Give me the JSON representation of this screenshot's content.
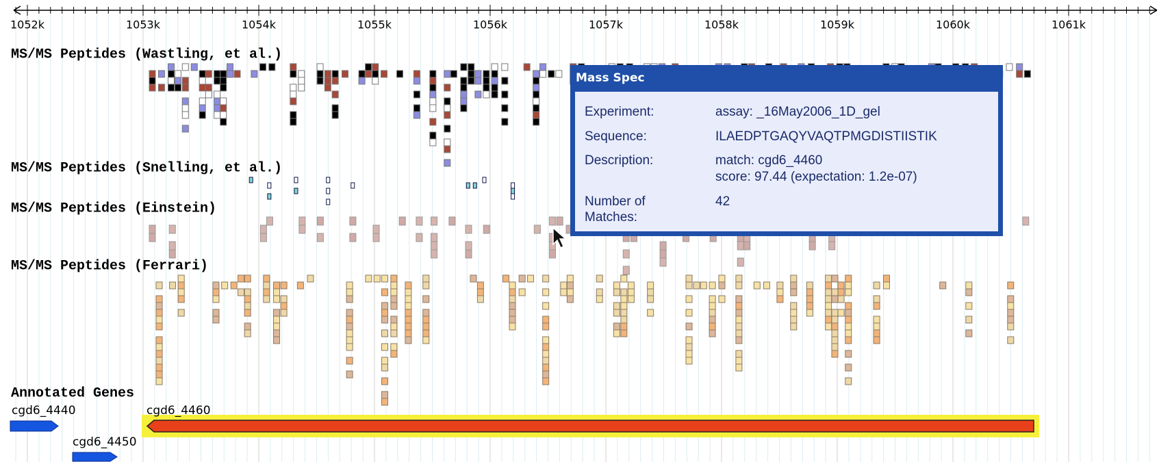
{
  "ruler": {
    "labels": [
      "1052k",
      "1053k",
      "1054k",
      "1055k",
      "1056k",
      "1057k",
      "1058k",
      "1059k",
      "1060k",
      "1061k"
    ]
  },
  "tracks": [
    {
      "title": "MS/MS Peptides (Wastling, et al.)"
    },
    {
      "title": "MS/MS Peptides (Snelling, et al.)"
    },
    {
      "title": "MS/MS Peptides (Einstein)"
    },
    {
      "title": "MS/MS Peptides (Ferrari)"
    }
  ],
  "genes": {
    "title": "Annotated Genes",
    "items": [
      {
        "label": "cgd6_4440"
      },
      {
        "label": "cgd6_4460"
      },
      {
        "label": "cgd6_4450"
      }
    ]
  },
  "tooltip": {
    "title": "Mass Spec",
    "rows": [
      {
        "key": "Experiment:",
        "value": "assay: _16May2006_1D_gel"
      },
      {
        "key": "Sequence:",
        "value": "ILAEDPTGAQYVAQTPMGDISTIISTIK"
      },
      {
        "key": "Description:",
        "value": [
          "match: cgd6_4460",
          "score: 97.44 (expectation: 1.2e-07)"
        ]
      },
      {
        "key": [
          "Number of",
          "Matches:"
        ],
        "value": "42"
      }
    ]
  }
}
